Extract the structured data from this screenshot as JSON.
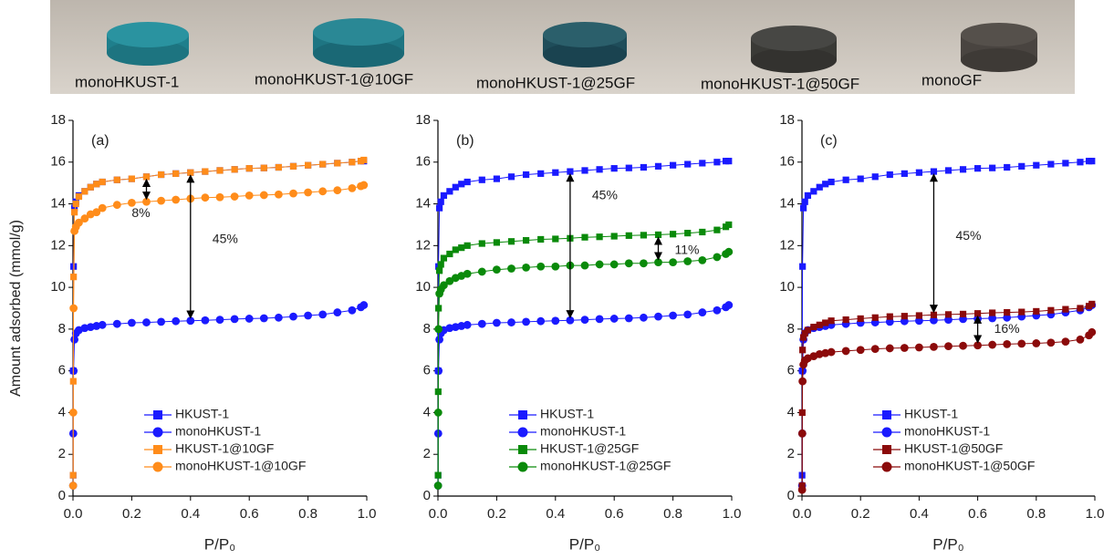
{
  "photo": {
    "labels": [
      "monoHKUST-1",
      "monoHKUST-1@10GF",
      "monoHKUST-1@25GF",
      "monoHKUST-1@50GF",
      "monoGF"
    ]
  },
  "chart_data": [
    {
      "type": "line",
      "panel_label": "(a)",
      "ylabel": "Amount adsorbed (mmol/g)",
      "xlabel": "P/P₀",
      "annotations": [
        "8%",
        "45%"
      ],
      "x": [
        0.0005,
        0.001,
        0.002,
        0.005,
        0.01,
        0.02,
        0.04,
        0.06,
        0.08,
        0.1,
        0.15,
        0.2,
        0.25,
        0.3,
        0.35,
        0.4,
        0.45,
        0.5,
        0.55,
        0.6,
        0.65,
        0.7,
        0.75,
        0.8,
        0.85,
        0.9,
        0.95,
        0.98,
        0.99
      ],
      "xlim": [
        0,
        1
      ],
      "ylim": [
        0,
        18
      ],
      "xticks": [
        {
          "value": 0,
          "label": "0.0"
        },
        0.2,
        0.4,
        0.6,
        0.8,
        {
          "value": 1,
          "label": "1.0"
        }
      ],
      "yticks": [
        0,
        2,
        4,
        6,
        8,
        10,
        12,
        14,
        16,
        18
      ],
      "series": [
        {
          "name": "HKUST-1",
          "color": "#1a1aff",
          "marker": "square",
          "values": [
            1,
            6,
            11,
            13.8,
            14.1,
            14.4,
            14.6,
            14.8,
            14.95,
            15.05,
            15.15,
            15.2,
            15.3,
            15.4,
            15.45,
            15.5,
            15.55,
            15.6,
            15.65,
            15.7,
            15.72,
            15.75,
            15.8,
            15.85,
            15.9,
            15.95,
            16.0,
            16.05,
            16.05
          ]
        },
        {
          "name": "monoHKUST-1",
          "color": "#1a1aff",
          "marker": "circle",
          "values": [
            0.5,
            3,
            6,
            7.5,
            7.8,
            7.95,
            8.05,
            8.1,
            8.15,
            8.2,
            8.25,
            8.3,
            8.32,
            8.35,
            8.38,
            8.4,
            8.42,
            8.45,
            8.48,
            8.5,
            8.52,
            8.55,
            8.6,
            8.65,
            8.7,
            8.8,
            8.9,
            9.05,
            9.15
          ]
        },
        {
          "name": "HKUST-1@10GF",
          "color": "#ff8c1a",
          "marker": "square",
          "values": [
            1,
            5.5,
            10.5,
            13.6,
            14.0,
            14.35,
            14.6,
            14.8,
            14.95,
            15.05,
            15.15,
            15.2,
            15.3,
            15.4,
            15.45,
            15.5,
            15.55,
            15.6,
            15.65,
            15.7,
            15.72,
            15.75,
            15.8,
            15.85,
            15.9,
            15.95,
            16.0,
            16.05,
            16.1
          ]
        },
        {
          "name": "monoHKUST-1@10GF",
          "color": "#ff8c1a",
          "marker": "circle",
          "values": [
            0.5,
            4,
            9,
            12.7,
            12.9,
            13.1,
            13.3,
            13.5,
            13.6,
            13.8,
            13.95,
            14.05,
            14.1,
            14.15,
            14.2,
            14.25,
            14.3,
            14.32,
            14.35,
            14.4,
            14.42,
            14.45,
            14.5,
            14.55,
            14.6,
            14.65,
            14.75,
            14.85,
            14.9
          ]
        }
      ]
    },
    {
      "type": "line",
      "panel_label": "(b)",
      "xlabel": "P/P₀",
      "annotations": [
        "45%",
        "11%"
      ],
      "x": [
        0.0005,
        0.001,
        0.002,
        0.005,
        0.01,
        0.02,
        0.04,
        0.06,
        0.08,
        0.1,
        0.15,
        0.2,
        0.25,
        0.3,
        0.35,
        0.4,
        0.45,
        0.5,
        0.55,
        0.6,
        0.65,
        0.7,
        0.75,
        0.8,
        0.85,
        0.9,
        0.95,
        0.98,
        0.99
      ],
      "xlim": [
        0,
        1
      ],
      "ylim": [
        0,
        18
      ],
      "xticks": [
        {
          "value": 0,
          "label": "0.0"
        },
        0.2,
        0.4,
        0.6,
        0.8,
        {
          "value": 1,
          "label": "1.0"
        }
      ],
      "yticks": [
        0,
        2,
        4,
        6,
        8,
        10,
        12,
        14,
        16,
        18
      ],
      "series": [
        {
          "name": "HKUST-1",
          "color": "#1a1aff",
          "marker": "square",
          "values": [
            1,
            6,
            11,
            13.8,
            14.1,
            14.4,
            14.6,
            14.8,
            14.95,
            15.05,
            15.15,
            15.2,
            15.3,
            15.4,
            15.45,
            15.5,
            15.55,
            15.6,
            15.65,
            15.7,
            15.72,
            15.75,
            15.8,
            15.85,
            15.9,
            15.95,
            16.0,
            16.05,
            16.05
          ]
        },
        {
          "name": "monoHKUST-1",
          "color": "#1a1aff",
          "marker": "circle",
          "values": [
            0.5,
            3,
            6,
            7.5,
            7.8,
            7.95,
            8.05,
            8.1,
            8.15,
            8.2,
            8.25,
            8.3,
            8.32,
            8.35,
            8.38,
            8.4,
            8.42,
            8.45,
            8.48,
            8.5,
            8.52,
            8.55,
            8.6,
            8.65,
            8.7,
            8.8,
            8.9,
            9.05,
            9.15
          ]
        },
        {
          "name": "HKUST-1@25GF",
          "color": "#0a8a0a",
          "marker": "square",
          "values": [
            1,
            5,
            9,
            10.8,
            11.1,
            11.4,
            11.6,
            11.8,
            11.9,
            12.0,
            12.1,
            12.15,
            12.2,
            12.25,
            12.3,
            12.32,
            12.35,
            12.4,
            12.42,
            12.45,
            12.48,
            12.5,
            12.52,
            12.55,
            12.6,
            12.65,
            12.75,
            12.9,
            13.0
          ]
        },
        {
          "name": "monoHKUST-1@25GF",
          "color": "#0a8a0a",
          "marker": "circle",
          "values": [
            0.5,
            4,
            8,
            9.7,
            9.9,
            10.1,
            10.3,
            10.45,
            10.55,
            10.65,
            10.75,
            10.85,
            10.9,
            10.95,
            11.0,
            11.0,
            11.05,
            11.05,
            11.1,
            11.1,
            11.15,
            11.15,
            11.2,
            11.2,
            11.25,
            11.3,
            11.45,
            11.6,
            11.7
          ]
        }
      ]
    },
    {
      "type": "line",
      "panel_label": "(c)",
      "xlabel": "P/P₀",
      "annotations": [
        "45%",
        "16%"
      ],
      "x": [
        0.0005,
        0.001,
        0.002,
        0.005,
        0.01,
        0.02,
        0.04,
        0.06,
        0.08,
        0.1,
        0.15,
        0.2,
        0.25,
        0.3,
        0.35,
        0.4,
        0.45,
        0.5,
        0.55,
        0.6,
        0.65,
        0.7,
        0.75,
        0.8,
        0.85,
        0.9,
        0.95,
        0.98,
        0.99
      ],
      "xlim": [
        0,
        1
      ],
      "ylim": [
        0,
        18
      ],
      "xticks": [
        {
          "value": 0,
          "label": "0.0"
        },
        0.2,
        0.4,
        0.6,
        0.8,
        {
          "value": 1,
          "label": "1.0"
        }
      ],
      "yticks": [
        0,
        2,
        4,
        6,
        8,
        10,
        12,
        14,
        16,
        18
      ],
      "series": [
        {
          "name": "HKUST-1",
          "color": "#1a1aff",
          "marker": "square",
          "values": [
            1,
            6,
            11,
            13.8,
            14.1,
            14.4,
            14.6,
            14.8,
            14.95,
            15.05,
            15.15,
            15.2,
            15.3,
            15.4,
            15.45,
            15.5,
            15.55,
            15.6,
            15.65,
            15.7,
            15.72,
            15.75,
            15.8,
            15.85,
            15.9,
            15.95,
            16.0,
            16.05,
            16.05
          ]
        },
        {
          "name": "monoHKUST-1",
          "color": "#1a1aff",
          "marker": "circle",
          "values": [
            0.5,
            3,
            6,
            7.5,
            7.8,
            7.95,
            8.05,
            8.1,
            8.15,
            8.2,
            8.25,
            8.3,
            8.32,
            8.35,
            8.38,
            8.4,
            8.42,
            8.45,
            8.48,
            8.5,
            8.52,
            8.55,
            8.6,
            8.65,
            8.7,
            8.8,
            8.9,
            9.05,
            9.15
          ]
        },
        {
          "name": "HKUST-1@50GF",
          "color": "#8b0a0a",
          "marker": "square",
          "values": [
            0.5,
            4,
            7,
            7.6,
            7.8,
            7.95,
            8.1,
            8.2,
            8.3,
            8.4,
            8.45,
            8.5,
            8.55,
            8.6,
            8.62,
            8.65,
            8.68,
            8.7,
            8.72,
            8.75,
            8.78,
            8.8,
            8.82,
            8.85,
            8.9,
            8.95,
            9.0,
            9.1,
            9.2
          ]
        },
        {
          "name": "monoHKUST-1@50GF",
          "color": "#8b0a0a",
          "marker": "circle",
          "values": [
            0.3,
            3,
            5.5,
            6.3,
            6.5,
            6.6,
            6.7,
            6.8,
            6.85,
            6.9,
            6.95,
            7.0,
            7.05,
            7.08,
            7.1,
            7.12,
            7.15,
            7.18,
            7.2,
            7.22,
            7.25,
            7.28,
            7.3,
            7.32,
            7.35,
            7.4,
            7.5,
            7.7,
            7.85
          ]
        }
      ]
    }
  ]
}
